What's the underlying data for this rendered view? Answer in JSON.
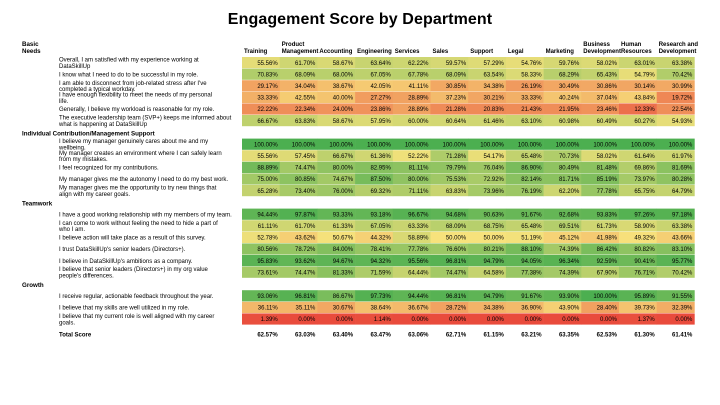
{
  "chart_data": {
    "type": "heatmap",
    "title": "Engagement Score by Department",
    "columns": [
      "Training",
      "Product Management",
      "Accounting",
      "Engineering",
      "Services",
      "Sales",
      "Support",
      "Legal",
      "Marketing",
      "Business Development",
      "Human Resources",
      "Research and Development"
    ],
    "sections": [
      {
        "name": "Basic Needs",
        "rows": [
          {
            "question": "Overall, I am satisfied with my experience working at DataSkillUp",
            "values": [
              "55.56%",
              "61.70%",
              "58.67%",
              "63.64%",
              "62.22%",
              "59.57%",
              "57.29%",
              "54.76%",
              "59.76%",
              "58.02%",
              "63.01%",
              "63.38%"
            ]
          },
          {
            "question": "I know what I need to do to be successful in my role.",
            "values": [
              "70.83%",
              "68.09%",
              "68.00%",
              "67.05%",
              "67.78%",
              "68.09%",
              "63.54%",
              "58.33%",
              "68.29%",
              "65.43%",
              "54.79%",
              "70.42%"
            ]
          },
          {
            "question": "I am able to disconnect from job-related stress after I've completed a typical workday.",
            "values": [
              "29.17%",
              "34.04%",
              "38.67%",
              "42.05%",
              "41.11%",
              "30.85%",
              "34.38%",
              "26.19%",
              "30.49%",
              "30.86%",
              "30.14%",
              "30.99%"
            ]
          },
          {
            "question": "I have enough flexibility to meet the needs of my personal life.",
            "values": [
              "33.33%",
              "42.55%",
              "40.00%",
              "27.27%",
              "28.89%",
              "37.23%",
              "30.21%",
              "33.33%",
              "40.24%",
              "37.04%",
              "43.84%",
              "19.72%"
            ]
          },
          {
            "question": "Generally, I believe my workload is reasonable for my role.",
            "values": [
              "22.22%",
              "22.34%",
              "24.00%",
              "23.86%",
              "28.89%",
              "21.28%",
              "20.83%",
              "21.43%",
              "21.95%",
              "23.46%",
              "12.33%",
              "22.54%"
            ]
          },
          {
            "question": "The executive leadership team (SVP+) keeps me informed about what is happening at DataSkillUp",
            "values": [
              "66.67%",
              "63.83%",
              "58.67%",
              "57.95%",
              "60.00%",
              "60.64%",
              "61.46%",
              "63.10%",
              "60.98%",
              "60.49%",
              "60.27%",
              "54.93%"
            ]
          }
        ]
      },
      {
        "name": "Individual Contribution/Management Support",
        "rows": [
          {
            "question": "I believe my manager genuinely cares about me and my wellbeing.",
            "values": [
              "100.00%",
              "100.00%",
              "100.00%",
              "100.00%",
              "100.00%",
              "100.00%",
              "100.00%",
              "100.00%",
              "100.00%",
              "100.00%",
              "100.00%",
              "100.00%"
            ]
          },
          {
            "question": "My manager creates an environment where I can safely learn from my mistakes.",
            "values": [
              "55.56%",
              "57.45%",
              "66.67%",
              "61.36%",
              "52.22%",
              "71.28%",
              "54.17%",
              "65.48%",
              "70.73%",
              "58.02%",
              "61.64%",
              "61.97%"
            ]
          },
          {
            "question": "I feel recognized for my contributions.",
            "values": [
              "88.89%",
              "74.47%",
              "80.00%",
              "82.95%",
              "81.11%",
              "79.79%",
              "76.04%",
              "86.90%",
              "80.49%",
              "81.48%",
              "69.86%",
              "81.69%"
            ]
          },
          {
            "question": "My manager gives me the autonomy I need to do my best work.",
            "values": [
              "75.00%",
              "80.85%",
              "74.67%",
              "87.50%",
              "80.00%",
              "75.53%",
              "72.92%",
              "82.14%",
              "81.71%",
              "85.19%",
              "73.97%",
              "80.28%"
            ]
          },
          {
            "question": "My manager gives me the opportunity to try new things that align with my career goals.",
            "values": [
              "65.28%",
              "73.40%",
              "76.00%",
              "69.32%",
              "71.11%",
              "63.83%",
              "73.96%",
              "76.19%",
              "62.20%",
              "77.78%",
              "65.75%",
              "64.79%"
            ]
          }
        ]
      },
      {
        "name": "Teamwork",
        "rows": [
          {
            "question": "I have a good working relationship with my members of my team.",
            "values": [
              "94.44%",
              "97.87%",
              "93.33%",
              "93.18%",
              "96.67%",
              "94.68%",
              "90.63%",
              "91.67%",
              "92.68%",
              "93.83%",
              "97.26%",
              "97.18%"
            ]
          },
          {
            "question": "I can come to work without feeling the need to hide a part of who I am.",
            "values": [
              "61.11%",
              "61.70%",
              "61.33%",
              "67.05%",
              "63.33%",
              "68.09%",
              "68.75%",
              "65.48%",
              "69.51%",
              "61.73%",
              "58.90%",
              "63.38%"
            ]
          },
          {
            "question": "I believe action will take place as a result of this survey.",
            "values": [
              "52.78%",
              "43.62%",
              "50.67%",
              "44.32%",
              "58.89%",
              "50.00%",
              "50.00%",
              "51.19%",
              "45.12%",
              "41.98%",
              "49.32%",
              "43.66%"
            ]
          },
          {
            "question": "I trust DataSkillUp's senior leaders (Directors+).",
            "values": [
              "80.56%",
              "78.72%",
              "84.00%",
              "78.41%",
              "77.78%",
              "76.60%",
              "80.21%",
              "88.10%",
              "74.39%",
              "86.42%",
              "80.82%",
              "83.10%"
            ]
          },
          {
            "question": "I believe in DataSkillUp's ambitions as a company.",
            "values": [
              "95.83%",
              "93.62%",
              "94.67%",
              "94.32%",
              "95.56%",
              "96.81%",
              "94.79%",
              "94.05%",
              "96.34%",
              "92.59%",
              "90.41%",
              "95.77%"
            ]
          },
          {
            "question": "I believe that senior leaders (Directors+) in my org value people's differences.",
            "values": [
              "73.61%",
              "74.47%",
              "81.33%",
              "71.59%",
              "64.44%",
              "74.47%",
              "64.58%",
              "77.38%",
              "74.39%",
              "67.90%",
              "76.71%",
              "70.42%"
            ]
          }
        ]
      },
      {
        "name": "Growth",
        "rows": [
          {
            "question": "I receive regular, actionable feedback throughout the year.",
            "values": [
              "93.06%",
              "96.81%",
              "86.67%",
              "97.73%",
              "94.44%",
              "96.81%",
              "94.79%",
              "91.67%",
              "93.90%",
              "100.00%",
              "95.89%",
              "91.55%"
            ]
          },
          {
            "question": "I believe that my skills are well utilized in my role.",
            "values": [
              "36.11%",
              "35.11%",
              "30.67%",
              "38.64%",
              "36.67%",
              "28.72%",
              "34.38%",
              "36.90%",
              "43.90%",
              "28.40%",
              "39.73%",
              "32.39%"
            ]
          },
          {
            "question": "I believe that my current role is well aligned with my career goals.",
            "values": [
              "1.39%",
              "0.00%",
              "0.00%",
              "1.14%",
              "0.00%",
              "0.00%",
              "0.00%",
              "0.00%",
              "0.00%",
              "0.00%",
              "1.37%",
              "0.00%"
            ]
          }
        ]
      }
    ],
    "total": {
      "label": "Total Score",
      "values": [
        "62.57%",
        "63.03%",
        "63.40%",
        "63.47%",
        "63.06%",
        "62.71%",
        "61.15%",
        "63.21%",
        "63.35%",
        "62.53%",
        "61.30%",
        "61.41%"
      ]
    },
    "color_scale": {
      "low": "#e94b3c",
      "mid": "#f7e27c",
      "high": "#4caf50"
    }
  }
}
